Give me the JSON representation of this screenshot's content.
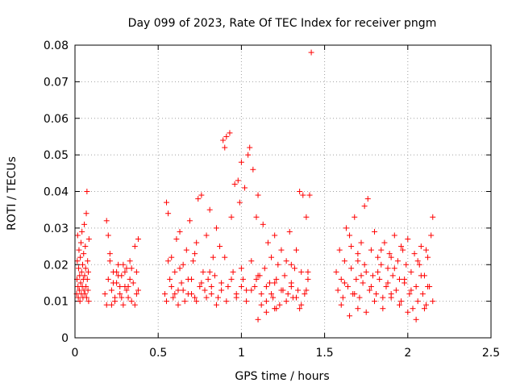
{
  "chart_data": {
    "type": "scatter",
    "title": "Day 099 of 2023, Rate Of TEC Index for receiver pngm",
    "xlabel": "GPS time / hours",
    "ylabel": "ROTI / TECUs",
    "xlim": [
      0,
      2.5
    ],
    "ylim": [
      0,
      0.08
    ],
    "x_ticks": [
      0,
      0.5,
      1,
      1.5,
      2,
      2.5
    ],
    "x_tick_labels": [
      "0",
      "0.5",
      "1",
      "1.5",
      "2",
      "2.5"
    ],
    "y_ticks": [
      0,
      0.01,
      0.02,
      0.03,
      0.04,
      0.05,
      0.06,
      0.07,
      0.08
    ],
    "y_tick_labels": [
      "0",
      "0.01",
      "0.02",
      "0.03",
      "0.04",
      "0.05",
      "0.06",
      "0.07",
      "0.08"
    ],
    "grid": true,
    "marker": "+",
    "color": "#ff0000",
    "series": [
      {
        "name": "ROTI",
        "points": [
          [
            0.01,
            0.012
          ],
          [
            0.012,
            0.016
          ],
          [
            0.014,
            0.021
          ],
          [
            0.016,
            0.028
          ],
          [
            0.018,
            0.014
          ],
          [
            0.02,
            0.011
          ],
          [
            0.022,
            0.019
          ],
          [
            0.024,
            0.024
          ],
          [
            0.026,
            0.013
          ],
          [
            0.028,
            0.017
          ],
          [
            0.03,
            0.01
          ],
          [
            0.032,
            0.022
          ],
          [
            0.034,
            0.015
          ],
          [
            0.036,
            0.026
          ],
          [
            0.038,
            0.012
          ],
          [
            0.04,
            0.018
          ],
          [
            0.042,
            0.029
          ],
          [
            0.044,
            0.014
          ],
          [
            0.046,
            0.02
          ],
          [
            0.048,
            0.011
          ],
          [
            0.05,
            0.016
          ],
          [
            0.052,
            0.023
          ],
          [
            0.054,
            0.013
          ],
          [
            0.056,
            0.031
          ],
          [
            0.058,
            0.017
          ],
          [
            0.06,
            0.012
          ],
          [
            0.062,
            0.025
          ],
          [
            0.064,
            0.019
          ],
          [
            0.066,
            0.014
          ],
          [
            0.068,
            0.034
          ],
          [
            0.07,
            0.011
          ],
          [
            0.072,
            0.04
          ],
          [
            0.074,
            0.016
          ],
          [
            0.076,
            0.021
          ],
          [
            0.078,
            0.013
          ],
          [
            0.08,
            0.018
          ],
          [
            0.082,
            0.01
          ],
          [
            0.084,
            0.027
          ],
          [
            0.18,
            0.012
          ],
          [
            0.19,
            0.009
          ],
          [
            0.2,
            0.016
          ],
          [
            0.21,
            0.021
          ],
          [
            0.22,
            0.013
          ],
          [
            0.23,
            0.018
          ],
          [
            0.24,
            0.01
          ],
          [
            0.25,
            0.015
          ],
          [
            0.26,
            0.02
          ],
          [
            0.27,
            0.012
          ],
          [
            0.28,
            0.017
          ],
          [
            0.29,
            0.009
          ],
          [
            0.3,
            0.014
          ],
          [
            0.31,
            0.019
          ],
          [
            0.32,
            0.011
          ],
          [
            0.33,
            0.016
          ],
          [
            0.19,
            0.032
          ],
          [
            0.2,
            0.028
          ],
          [
            0.21,
            0.023
          ],
          [
            0.23,
            0.015
          ],
          [
            0.25,
            0.018
          ],
          [
            0.27,
            0.014
          ],
          [
            0.29,
            0.02
          ],
          [
            0.31,
            0.013
          ],
          [
            0.33,
            0.021
          ],
          [
            0.34,
            0.01
          ],
          [
            0.35,
            0.015
          ],
          [
            0.36,
            0.025
          ],
          [
            0.37,
            0.012
          ],
          [
            0.38,
            0.027
          ],
          [
            0.36,
            0.009
          ],
          [
            0.37,
            0.018
          ],
          [
            0.38,
            0.013
          ],
          [
            0.22,
            0.009
          ],
          [
            0.24,
            0.011
          ],
          [
            0.26,
            0.017
          ],
          [
            0.28,
            0.011
          ],
          [
            0.3,
            0.018
          ],
          [
            0.32,
            0.014
          ],
          [
            0.34,
            0.019
          ],
          [
            0.54,
            0.012
          ],
          [
            0.55,
            0.037
          ],
          [
            0.56,
            0.034
          ],
          [
            0.57,
            0.016
          ],
          [
            0.58,
            0.022
          ],
          [
            0.59,
            0.011
          ],
          [
            0.6,
            0.018
          ],
          [
            0.61,
            0.027
          ],
          [
            0.62,
            0.013
          ],
          [
            0.63,
            0.029
          ],
          [
            0.64,
            0.015
          ],
          [
            0.65,
            0.02
          ],
          [
            0.66,
            0.01
          ],
          [
            0.67,
            0.024
          ],
          [
            0.68,
            0.012
          ],
          [
            0.69,
            0.032
          ],
          [
            0.7,
            0.016
          ],
          [
            0.71,
            0.021
          ],
          [
            0.72,
            0.011
          ],
          [
            0.73,
            0.026
          ],
          [
            0.74,
            0.038
          ],
          [
            0.75,
            0.014
          ],
          [
            0.76,
            0.039
          ],
          [
            0.77,
            0.018
          ],
          [
            0.78,
            0.013
          ],
          [
            0.79,
            0.028
          ],
          [
            0.8,
            0.016
          ],
          [
            0.81,
            0.035
          ],
          [
            0.82,
            0.012
          ],
          [
            0.83,
            0.022
          ],
          [
            0.84,
            0.017
          ],
          [
            0.85,
            0.03
          ],
          [
            0.86,
            0.011
          ],
          [
            0.87,
            0.025
          ],
          [
            0.88,
            0.015
          ],
          [
            0.89,
            0.054
          ],
          [
            0.9,
            0.052
          ],
          [
            0.91,
            0.055
          ],
          [
            0.92,
            0.014
          ],
          [
            0.93,
            0.056
          ],
          [
            0.94,
            0.033
          ],
          [
            0.95,
            0.018
          ],
          [
            0.96,
            0.042
          ],
          [
            0.97,
            0.012
          ],
          [
            0.98,
            0.043
          ],
          [
            0.99,
            0.037
          ],
          [
            1.0,
            0.048
          ],
          [
            1.01,
            0.016
          ],
          [
            1.02,
            0.041
          ],
          [
            1.03,
            0.013
          ],
          [
            1.04,
            0.05
          ],
          [
            1.05,
            0.052
          ],
          [
            1.06,
            0.021
          ],
          [
            1.07,
            0.046
          ],
          [
            1.08,
            0.014
          ],
          [
            1.09,
            0.033
          ],
          [
            1.1,
            0.039
          ],
          [
            1.11,
            0.017
          ],
          [
            1.12,
            0.012
          ],
          [
            1.13,
            0.031
          ],
          [
            1.14,
            0.019
          ],
          [
            1.15,
            0.01
          ],
          [
            1.16,
            0.026
          ],
          [
            1.17,
            0.015
          ],
          [
            1.18,
            0.022
          ],
          [
            1.19,
            0.011
          ],
          [
            1.2,
            0.028
          ],
          [
            1.21,
            0.016
          ],
          [
            1.22,
            0.02
          ],
          [
            1.23,
            0.009
          ],
          [
            1.24,
            0.024
          ],
          [
            1.25,
            0.013
          ],
          [
            1.26,
            0.017
          ],
          [
            1.27,
            0.021
          ],
          [
            1.28,
            0.012
          ],
          [
            1.29,
            0.029
          ],
          [
            1.3,
            0.015
          ],
          [
            1.31,
            0.011
          ],
          [
            1.32,
            0.019
          ],
          [
            1.33,
            0.024
          ],
          [
            1.34,
            0.013
          ],
          [
            1.35,
            0.04
          ],
          [
            1.36,
            0.018
          ],
          [
            1.37,
            0.039
          ],
          [
            1.38,
            0.012
          ],
          [
            1.39,
            0.033
          ],
          [
            1.4,
            0.016
          ],
          [
            1.41,
            0.039
          ],
          [
            1.42,
            0.078
          ],
          [
            0.55,
            0.01
          ],
          [
            0.58,
            0.014
          ],
          [
            0.6,
            0.012
          ],
          [
            0.62,
            0.009
          ],
          [
            0.65,
            0.013
          ],
          [
            0.68,
            0.016
          ],
          [
            0.7,
            0.012
          ],
          [
            0.73,
            0.01
          ],
          [
            0.76,
            0.015
          ],
          [
            0.79,
            0.011
          ],
          [
            0.82,
            0.014
          ],
          [
            0.85,
            0.009
          ],
          [
            0.88,
            0.013
          ],
          [
            0.91,
            0.01
          ],
          [
            0.94,
            0.016
          ],
          [
            0.97,
            0.011
          ],
          [
            1.0,
            0.014
          ],
          [
            1.03,
            0.01
          ],
          [
            1.06,
            0.013
          ],
          [
            1.09,
            0.016
          ],
          [
            1.12,
            0.009
          ],
          [
            1.15,
            0.014
          ],
          [
            1.18,
            0.012
          ],
          [
            1.21,
            0.008
          ],
          [
            1.24,
            0.013
          ],
          [
            1.27,
            0.01
          ],
          [
            1.3,
            0.014
          ],
          [
            1.33,
            0.011
          ],
          [
            1.36,
            0.009
          ],
          [
            1.39,
            0.013
          ],
          [
            1.1,
            0.005
          ],
          [
            1.15,
            0.007
          ],
          [
            1.2,
            0.008
          ],
          [
            1.35,
            0.008
          ],
          [
            0.56,
            0.021
          ],
          [
            0.63,
            0.019
          ],
          [
            0.72,
            0.023
          ],
          [
            0.81,
            0.018
          ],
          [
            0.9,
            0.022
          ],
          [
            1.0,
            0.019
          ],
          [
            1.1,
            0.017
          ],
          [
            1.2,
            0.015
          ],
          [
            1.3,
            0.02
          ],
          [
            1.4,
            0.018
          ],
          [
            1.57,
            0.018
          ],
          [
            1.58,
            0.013
          ],
          [
            1.59,
            0.024
          ],
          [
            1.6,
            0.016
          ],
          [
            1.61,
            0.011
          ],
          [
            1.62,
            0.021
          ],
          [
            1.63,
            0.03
          ],
          [
            1.64,
            0.014
          ],
          [
            1.65,
            0.028
          ],
          [
            1.66,
            0.019
          ],
          [
            1.67,
            0.012
          ],
          [
            1.68,
            0.033
          ],
          [
            1.69,
            0.016
          ],
          [
            1.7,
            0.021
          ],
          [
            1.71,
            0.011
          ],
          [
            1.72,
            0.026
          ],
          [
            1.73,
            0.015
          ],
          [
            1.74,
            0.036
          ],
          [
            1.75,
            0.018
          ],
          [
            1.76,
            0.038
          ],
          [
            1.77,
            0.013
          ],
          [
            1.78,
            0.024
          ],
          [
            1.79,
            0.017
          ],
          [
            1.8,
            0.029
          ],
          [
            1.81,
            0.012
          ],
          [
            1.82,
            0.022
          ],
          [
            1.83,
            0.016
          ],
          [
            1.84,
            0.02
          ],
          [
            1.85,
            0.011
          ],
          [
            1.86,
            0.026
          ],
          [
            1.87,
            0.014
          ],
          [
            1.88,
            0.019
          ],
          [
            1.89,
            0.023
          ],
          [
            1.9,
            0.012
          ],
          [
            1.91,
            0.017
          ],
          [
            1.92,
            0.028
          ],
          [
            1.93,
            0.013
          ],
          [
            1.94,
            0.021
          ],
          [
            1.95,
            0.016
          ],
          [
            1.96,
            0.01
          ],
          [
            1.97,
            0.024
          ],
          [
            1.98,
            0.015
          ],
          [
            1.99,
            0.02
          ],
          [
            2.0,
            0.027
          ],
          [
            2.01,
            0.012
          ],
          [
            2.02,
            0.018
          ],
          [
            2.03,
            0.008
          ],
          [
            2.04,
            0.023
          ],
          [
            2.05,
            0.014
          ],
          [
            2.06,
            0.01
          ],
          [
            2.07,
            0.02
          ],
          [
            2.08,
            0.025
          ],
          [
            2.09,
            0.012
          ],
          [
            2.1,
            0.017
          ],
          [
            2.11,
            0.009
          ],
          [
            2.12,
            0.022
          ],
          [
            2.13,
            0.014
          ],
          [
            2.14,
            0.028
          ],
          [
            2.15,
            0.033
          ],
          [
            1.6,
            0.009
          ],
          [
            1.65,
            0.006
          ],
          [
            1.7,
            0.008
          ],
          [
            1.75,
            0.007
          ],
          [
            1.8,
            0.01
          ],
          [
            1.85,
            0.008
          ],
          [
            1.9,
            0.011
          ],
          [
            1.95,
            0.009
          ],
          [
            2.0,
            0.007
          ],
          [
            2.05,
            0.005
          ],
          [
            2.1,
            0.008
          ],
          [
            2.15,
            0.01
          ],
          [
            1.62,
            0.015
          ],
          [
            1.68,
            0.012
          ],
          [
            1.72,
            0.017
          ],
          [
            1.78,
            0.014
          ],
          [
            1.82,
            0.018
          ],
          [
            1.88,
            0.015
          ],
          [
            1.92,
            0.019
          ],
          [
            1.98,
            0.016
          ],
          [
            2.02,
            0.013
          ],
          [
            2.08,
            0.017
          ],
          [
            2.12,
            0.014
          ],
          [
            1.66,
            0.025
          ],
          [
            1.7,
            0.023
          ],
          [
            1.74,
            0.02
          ],
          [
            1.84,
            0.024
          ],
          [
            1.9,
            0.022
          ],
          [
            1.96,
            0.025
          ],
          [
            2.06,
            0.021
          ],
          [
            2.11,
            0.024
          ]
        ]
      }
    ]
  }
}
